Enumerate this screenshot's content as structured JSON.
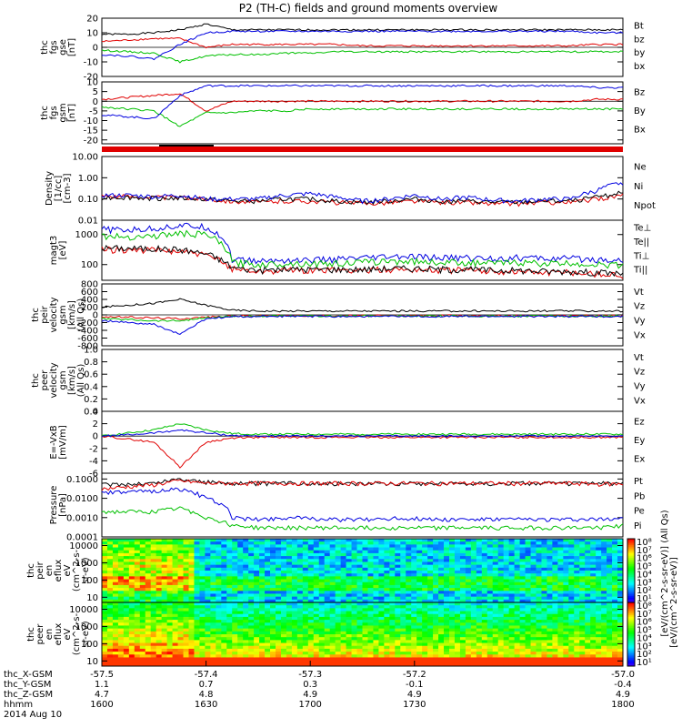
{
  "title": "P2 (TH-C) fields and ground moments overview",
  "chart_data": [
    {
      "id": "fgs_gse",
      "type": "line",
      "ylabel": [
        "thc",
        "fgs",
        "gse",
        "[nT]"
      ],
      "ylim": [
        -20,
        20
      ],
      "yticks": [
        "20",
        "10",
        "0",
        "-10",
        "-20"
      ],
      "ytick_values": [
        20,
        10,
        0,
        -10,
        -20
      ],
      "series": [
        {
          "name": "Bt",
          "color": "#000000",
          "values": [
            9,
            9,
            10,
            12,
            16,
            12,
            12,
            12,
            12,
            12,
            12,
            12,
            12,
            12,
            12,
            12,
            12,
            12,
            12,
            12,
            12
          ]
        },
        {
          "name": "bz",
          "color": "#e00000",
          "values": [
            4,
            5,
            6,
            6,
            0,
            2,
            2,
            2,
            2,
            2,
            1,
            1,
            1,
            1,
            1,
            1,
            1,
            1,
            1,
            2,
            2
          ]
        },
        {
          "name": "by",
          "color": "#00c000",
          "values": [
            -2,
            -3,
            -4,
            -10,
            -6,
            -5,
            -5,
            -4,
            -4,
            -3,
            -3,
            -3,
            -3,
            -3,
            -3,
            -3,
            -3,
            -3,
            -3,
            -3,
            -3
          ]
        },
        {
          "name": "bx",
          "color": "#0000e0",
          "values": [
            -5,
            -6,
            -8,
            2,
            10,
            11,
            11,
            11,
            11,
            11,
            11,
            11,
            11,
            11,
            11,
            11,
            11,
            11,
            11,
            10,
            10
          ]
        }
      ]
    },
    {
      "id": "fgs_gsm",
      "type": "line",
      "ylabel": [
        "thc",
        "fgs",
        "gsm",
        "[nT]"
      ],
      "ylim": [
        -22,
        10
      ],
      "yticks": [
        "10",
        "5",
        "0",
        "-5",
        "-10",
        "-15",
        "-20"
      ],
      "ytick_values": [
        10,
        5,
        0,
        -5,
        -10,
        -15,
        -20
      ],
      "series": [
        {
          "name": "Bz",
          "color": "#e00000",
          "values": [
            1,
            2,
            3,
            4,
            -5,
            0,
            0,
            0,
            0,
            0,
            0,
            0,
            0,
            0,
            0,
            0,
            0,
            0,
            0,
            1,
            1
          ]
        },
        {
          "name": "By",
          "color": "#00c000",
          "values": [
            -3,
            -4,
            -5,
            -13,
            -6,
            -6,
            -5,
            -5,
            -4,
            -4,
            -4,
            -4,
            -4,
            -4,
            -4,
            -4,
            -4,
            -4,
            -4,
            -4,
            -4
          ]
        },
        {
          "name": "Bx",
          "color": "#0000e0",
          "values": [
            -7,
            -8,
            -9,
            3,
            8,
            8,
            8,
            8,
            8,
            8,
            8,
            8,
            8,
            8,
            8,
            8,
            8,
            8,
            8,
            7,
            7
          ]
        }
      ]
    },
    {
      "id": "density",
      "type": "line",
      "log": true,
      "ylabel": [
        "Density",
        "[1/cc]",
        "[cm-3]"
      ],
      "ylim": [
        0.01,
        10
      ],
      "yticks": [
        "10.00",
        "1.00",
        "0.10",
        "0.01"
      ],
      "ytick_values": [
        10,
        1,
        0.1,
        0.01
      ],
      "series": [
        {
          "name": "Ne",
          "color": "#e00000",
          "values": [
            0.14,
            0.13,
            0.12,
            0.12,
            0.1,
            0.08,
            0.07,
            0.08,
            0.08,
            0.07,
            0.06,
            0.07,
            0.08,
            0.07,
            0.07,
            0.06,
            0.06,
            0.07,
            0.07,
            0.1,
            0.15
          ]
        },
        {
          "name": "Ni",
          "color": "#000000",
          "values": [
            0.12,
            0.12,
            0.11,
            0.11,
            0.1,
            0.08,
            0.08,
            0.1,
            0.1,
            0.08,
            0.07,
            0.08,
            0.1,
            0.08,
            0.08,
            0.07,
            0.07,
            0.08,
            0.08,
            0.12,
            0.2
          ]
        },
        {
          "name": "Npot",
          "color": "#0000e0",
          "values": [
            0.15,
            0.15,
            0.13,
            0.15,
            0.1,
            0.1,
            0.1,
            0.15,
            0.18,
            0.12,
            0.08,
            0.1,
            0.15,
            0.1,
            0.12,
            0.09,
            0.08,
            0.1,
            0.1,
            0.25,
            0.6
          ]
        }
      ]
    },
    {
      "id": "temperature",
      "type": "line",
      "log": true,
      "ylabel": [
        "magt3",
        "[eV]"
      ],
      "ylim": [
        30,
        3000
      ],
      "yticks": [
        "1000",
        "100"
      ],
      "ytick_values": [
        1000,
        100
      ],
      "series": [
        {
          "name": "Te⊥",
          "color": "#e00000",
          "values": [
            320,
            310,
            300,
            280,
            200,
            75,
            60,
            65,
            65,
            65,
            65,
            70,
            70,
            65,
            65,
            60,
            60,
            55,
            55,
            50,
            45
          ]
        },
        {
          "name": "Te||",
          "color": "#000000",
          "values": [
            360,
            350,
            340,
            320,
            230,
            80,
            65,
            70,
            70,
            70,
            70,
            75,
            75,
            70,
            70,
            65,
            65,
            60,
            60,
            55,
            50
          ]
        },
        {
          "name": "Ti⊥",
          "color": "#0000e0",
          "values": [
            1500,
            1400,
            1600,
            2000,
            1800,
            150,
            130,
            140,
            140,
            150,
            160,
            180,
            180,
            170,
            170,
            160,
            170,
            160,
            160,
            150,
            140
          ]
        },
        {
          "name": "Ti||",
          "color": "#00c000",
          "values": [
            900,
            850,
            900,
            1100,
            1000,
            120,
            100,
            110,
            110,
            110,
            120,
            130,
            130,
            120,
            120,
            110,
            120,
            110,
            110,
            100,
            95
          ]
        }
      ]
    },
    {
      "id": "vel_peir",
      "type": "line",
      "ylabel": [
        "thc",
        "peir",
        "velocity",
        "gsm",
        "[km/s]",
        "(All Qs)"
      ],
      "ylim": [
        -800,
        800
      ],
      "yticks": [
        "800",
        "600",
        "400",
        "200",
        "0",
        "-200",
        "-400",
        "-600",
        "-800"
      ],
      "ytick_values": [
        800,
        600,
        400,
        200,
        0,
        -200,
        -400,
        -600,
        -800
      ],
      "series": [
        {
          "name": "Vt",
          "color": "#000000",
          "values": [
            200,
            250,
            300,
            400,
            250,
            120,
            100,
            100,
            100,
            100,
            100,
            100,
            100,
            100,
            100,
            100,
            100,
            100,
            100,
            100,
            100
          ]
        },
        {
          "name": "Vz",
          "color": "#e00000",
          "values": [
            -50,
            -60,
            -80,
            -100,
            -60,
            -30,
            -20,
            -20,
            -20,
            -20,
            -20,
            -20,
            -20,
            -20,
            -20,
            -20,
            -20,
            -20,
            -20,
            -20,
            -20
          ]
        },
        {
          "name": "Vy",
          "color": "#00c000",
          "values": [
            -100,
            -120,
            -150,
            -150,
            -80,
            -40,
            -30,
            -30,
            -30,
            -30,
            -30,
            -30,
            -30,
            -30,
            -30,
            -30,
            -30,
            -30,
            -30,
            -30,
            -30
          ]
        },
        {
          "name": "Vx",
          "color": "#0000e0",
          "values": [
            -150,
            -200,
            -250,
            -500,
            -100,
            -50,
            -40,
            -40,
            -40,
            -40,
            -40,
            -40,
            -40,
            -40,
            -40,
            -40,
            -40,
            -40,
            -40,
            -40,
            -40
          ]
        }
      ]
    },
    {
      "id": "vel_peer",
      "type": "line",
      "ylabel": [
        "thc",
        "peer",
        "velocity",
        "gsm",
        "[km/s]",
        "(All Qs)"
      ],
      "ylim": [
        0,
        1
      ],
      "yticks": [
        "1.0",
        "0.8",
        "0.6",
        "0.4",
        "0.2",
        "0.0"
      ],
      "ytick_values": [
        1,
        0.8,
        0.6,
        0.4,
        0.2,
        0
      ],
      "series": [
        {
          "name": "Vt",
          "color": "#000000",
          "values": []
        },
        {
          "name": "Vz",
          "color": "#e00000",
          "values": []
        },
        {
          "name": "Vy",
          "color": "#00c000",
          "values": []
        },
        {
          "name": "Vx",
          "color": "#0000e0",
          "values": []
        }
      ]
    },
    {
      "id": "efield",
      "type": "line",
      "ylabel": [
        "E=-VxB",
        "[mV/m]"
      ],
      "ylim": [
        -6,
        4
      ],
      "yticks": [
        "4",
        "2",
        "0",
        "-2",
        "-4",
        "-6"
      ],
      "ytick_values": [
        4,
        2,
        0,
        -2,
        -4,
        -6
      ],
      "series": [
        {
          "name": "Ez",
          "color": "#e00000",
          "values": [
            0,
            -0.5,
            -1,
            -5,
            -1,
            -0.3,
            -0.2,
            -0.2,
            -0.2,
            -0.2,
            -0.2,
            -0.2,
            -0.2,
            -0.2,
            -0.2,
            -0.2,
            -0.2,
            -0.2,
            -0.2,
            -0.2,
            -0.2
          ]
        },
        {
          "name": "Ey",
          "color": "#00c000",
          "values": [
            0,
            0.5,
            1,
            2,
            1,
            0.4,
            0.3,
            0.3,
            0.3,
            0.3,
            0.3,
            0.3,
            0.3,
            0.3,
            0.3,
            0.3,
            0.3,
            0.3,
            0.3,
            0.3,
            0.3
          ]
        },
        {
          "name": "Ex",
          "color": "#0000e0",
          "values": [
            0,
            0.2,
            0.5,
            1,
            0.5,
            0.1,
            0,
            0,
            0,
            0,
            0,
            0,
            0,
            0,
            0,
            0,
            0,
            0,
            0,
            0,
            0
          ]
        }
      ]
    },
    {
      "id": "pressure",
      "type": "line",
      "log": true,
      "ylabel": [
        "Pressure",
        "[nPa]"
      ],
      "ylim": [
        0.0001,
        0.2
      ],
      "yticks": [
        "0.1000",
        "0.0100",
        "0.0010",
        "0.0001"
      ],
      "ytick_values": [
        0.1,
        0.01,
        0.001,
        0.0001
      ],
      "series": [
        {
          "name": "Pt",
          "color": "#000000",
          "values": [
            0.05,
            0.055,
            0.06,
            0.1,
            0.07,
            0.06,
            0.06,
            0.06,
            0.06,
            0.06,
            0.06,
            0.06,
            0.06,
            0.06,
            0.06,
            0.06,
            0.06,
            0.06,
            0.06,
            0.06,
            0.06
          ]
        },
        {
          "name": "Pb",
          "color": "#e00000",
          "values": [
            0.03,
            0.04,
            0.05,
            0.08,
            0.06,
            0.06,
            0.06,
            0.06,
            0.06,
            0.06,
            0.06,
            0.06,
            0.06,
            0.06,
            0.06,
            0.06,
            0.06,
            0.06,
            0.06,
            0.055,
            0.055
          ]
        },
        {
          "name": "Pe",
          "color": "#00c000",
          "values": [
            0.002,
            0.002,
            0.002,
            0.003,
            0.001,
            0.0004,
            0.0003,
            0.0003,
            0.0003,
            0.0003,
            0.0003,
            0.0003,
            0.0003,
            0.0003,
            0.0003,
            0.0003,
            0.0003,
            0.0003,
            0.0003,
            0.0003,
            0.0004
          ]
        },
        {
          "name": "Pi",
          "color": "#0000e0",
          "values": [
            0.02,
            0.02,
            0.025,
            0.03,
            0.01,
            0.001,
            0.0008,
            0.001,
            0.0009,
            0.0008,
            0.0008,
            0.0009,
            0.0009,
            0.0008,
            0.0008,
            0.0008,
            0.0008,
            0.0008,
            0.0008,
            0.0008,
            0.001
          ]
        }
      ]
    },
    {
      "id": "peir_eflux",
      "type": "heatmap",
      "log": true,
      "ylabel": [
        "thc",
        "peir",
        "en",
        "eflux",
        "eV",
        "(cm^2-s-",
        "sr-eV)"
      ],
      "ylim": [
        5,
        25000
      ],
      "yticks": [
        "10000",
        "1000",
        "100",
        "10"
      ],
      "ytick_values": [
        10000,
        1000,
        100,
        10
      ]
    },
    {
      "id": "peer_eflux",
      "type": "heatmap",
      "log": true,
      "ylabel": [
        "thc",
        "peer",
        "en",
        "eflux",
        "eV",
        "(cm^2-s-",
        "sr-eV)"
      ],
      "ylim": [
        5,
        25000
      ],
      "yticks": [
        "10000",
        "1000",
        "100",
        "10"
      ],
      "ytick_values": [
        10000,
        1000,
        100,
        10
      ]
    }
  ],
  "legend_top": [
    "Bt",
    "bz",
    "by",
    "bx"
  ],
  "legend_gsm": [
    "Bz",
    "By",
    "Bx"
  ],
  "colorbar": {
    "ticks": [
      "10⁸",
      "10⁷",
      "10⁶",
      "10⁵",
      "10⁴",
      "10³",
      "10²",
      "10¹"
    ],
    "ticks2": [
      "10⁸",
      "10⁷",
      "10⁶",
      "10⁵",
      "10⁴",
      "10³",
      "10²",
      "10¹"
    ],
    "label1": "[eV/(cm^2-s-sr-eV)]",
    "label2": "[eV/(cm^2-s-sr-eV)] (All Qs)"
  },
  "xaxis": {
    "rows": [
      {
        "name": "thc_X-GSM",
        "values": [
          "-57.5",
          "-57.4",
          "-57.3",
          "-57.2",
          "-57.0"
        ]
      },
      {
        "name": "thc_Y-GSM",
        "values": [
          "1.1",
          "0.7",
          "0.3",
          "-0.1",
          "-0.4"
        ]
      },
      {
        "name": "thc_Z-GSM",
        "values": [
          "4.7",
          "4.8",
          "4.9",
          "4.9",
          "4.9"
        ]
      },
      {
        "name": "hhmm",
        "values": [
          "1600",
          "1630",
          "1700",
          "1730",
          "1800"
        ]
      }
    ],
    "date": "2014 Aug 10"
  },
  "colors": {
    "black": "#000000",
    "red": "#e00000",
    "green": "#00c000",
    "blue": "#0000e0"
  }
}
